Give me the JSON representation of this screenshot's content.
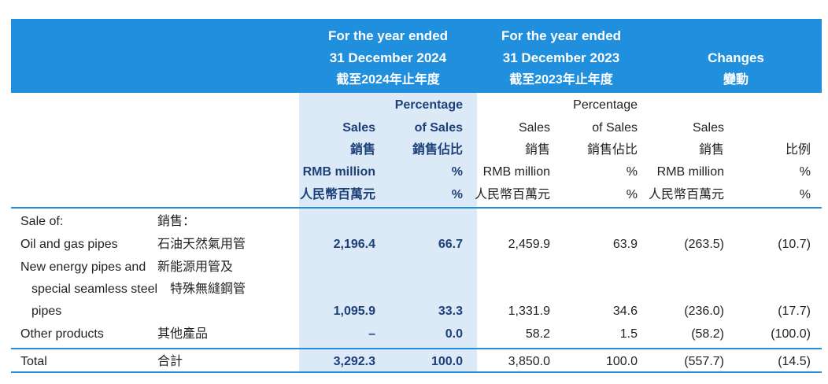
{
  "header": {
    "y2024": {
      "line1": "For the year ended",
      "line2": "31 December 2024",
      "line3": "截至2024年止年度"
    },
    "y2023": {
      "line1": "For the year ended",
      "line2": "31 December 2023",
      "line3": "截至2023年止年度"
    },
    "changes": {
      "line1": "Changes",
      "line2": "變動"
    }
  },
  "subheader": {
    "sales_2024": [
      "Sales",
      "銷售",
      "RMB million",
      "人民幣百萬元"
    ],
    "pct_2024": [
      "Percentage",
      "of Sales",
      "銷售佔比",
      "%",
      "%"
    ],
    "sales_2023": [
      "Sales",
      "銷售",
      "RMB million",
      "人民幣百萬元"
    ],
    "pct_2023": [
      "Percentage",
      "of Sales",
      "銷售佔比",
      "%",
      "%"
    ],
    "sales_change": [
      "Sales",
      "銷售",
      "RMB million",
      "人民幣百萬元"
    ],
    "ratio_change": [
      "比例",
      "%",
      "%"
    ]
  },
  "rows": {
    "sale_of": {
      "en": "Sale of:",
      "zh": "銷售："
    },
    "oil": {
      "en": "Oil and gas pipes",
      "zh": "石油天然氣用管",
      "sales_2024": "2,196.4",
      "pct_2024": "66.7",
      "sales_2023": "2,459.9",
      "pct_2023": "63.9",
      "chg": "(263.5)",
      "ratio": "(10.7)"
    },
    "new_energy": {
      "en1": "New energy pipes and",
      "en2": "special seamless steel",
      "en3": "pipes",
      "zh1": "新能源用管及",
      "zh2": "特殊無縫鋼管",
      "sales_2024": "1,095.9",
      "pct_2024": "33.3",
      "sales_2023": "1,331.9",
      "pct_2023": "34.6",
      "chg": "(236.0)",
      "ratio": "(17.7)"
    },
    "other": {
      "en": "Other products",
      "zh": "其他產品",
      "sales_2024": "–",
      "pct_2024": "0.0",
      "sales_2023": "58.2",
      "pct_2023": "1.5",
      "chg": "(58.2)",
      "ratio": "(100.0)"
    },
    "total": {
      "en": "Total",
      "zh": "合計",
      "sales_2024": "3,292.3",
      "pct_2024": "100.0",
      "sales_2023": "3,850.0",
      "pct_2023": "100.0",
      "chg": "(557.7)",
      "ratio": "(14.5)"
    }
  }
}
